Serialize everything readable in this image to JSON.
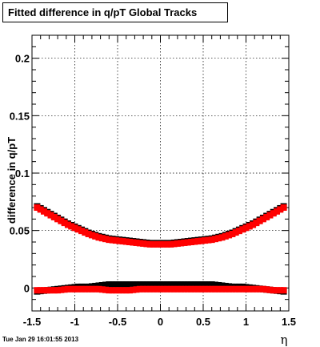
{
  "chart_data": {
    "type": "scatter",
    "title": "Fitted difference in q/pT  Global Tracks",
    "xlabel": "η",
    "ylabel": "difference in q/pT",
    "xlim": [
      -1.5,
      1.5
    ],
    "ylim": [
      -0.02,
      0.22
    ],
    "xticks": [
      -1.5,
      -1,
      -0.5,
      0,
      0.5,
      1,
      1.5
    ],
    "xtick_labels": [
      "-1.5",
      "-1",
      "-0.5",
      "0",
      "0.5",
      "1",
      "1.5"
    ],
    "yticks": [
      0,
      0.05,
      0.1,
      0.15,
      0.2
    ],
    "ytick_labels": [
      "0",
      "0.05",
      "0.1",
      "0.15",
      "0.2"
    ],
    "grid": true,
    "series": [
      {
        "color": "#000000",
        "marker": "square",
        "x": [
          -1.44,
          -1.32,
          -1.2,
          -1.08,
          -0.96,
          -0.84,
          -0.72,
          -0.6,
          -0.48,
          -0.36,
          -0.24,
          -0.12,
          0.0,
          0.12,
          0.24,
          0.36,
          0.48,
          0.6,
          0.72,
          0.84,
          0.96,
          1.08,
          1.2,
          1.32,
          1.44
        ],
        "y": [
          0.071,
          0.066,
          0.061,
          0.056,
          0.052,
          0.048,
          0.045,
          0.043,
          0.042,
          0.041,
          0.04,
          0.039,
          0.039,
          0.039,
          0.04,
          0.041,
          0.042,
          0.043,
          0.045,
          0.048,
          0.052,
          0.056,
          0.061,
          0.066,
          0.071
        ]
      },
      {
        "color": "#ff0000",
        "marker": "square",
        "x": [
          -1.44,
          -1.32,
          -1.2,
          -1.08,
          -0.96,
          -0.84,
          -0.72,
          -0.6,
          -0.48,
          -0.36,
          -0.24,
          -0.12,
          0.0,
          0.12,
          0.24,
          0.36,
          0.48,
          0.6,
          0.72,
          0.84,
          0.96,
          1.08,
          1.2,
          1.32,
          1.44
        ],
        "y": [
          0.07,
          0.065,
          0.06,
          0.055,
          0.051,
          0.047,
          0.044,
          0.042,
          0.041,
          0.04,
          0.039,
          0.038,
          0.038,
          0.038,
          0.039,
          0.04,
          0.041,
          0.042,
          0.044,
          0.047,
          0.051,
          0.055,
          0.06,
          0.065,
          0.07
        ]
      },
      {
        "color": "#000000",
        "marker": "square",
        "x": [
          -1.44,
          -1.32,
          -1.2,
          -1.08,
          -0.96,
          -0.84,
          -0.72,
          -0.6,
          -0.48,
          -0.36,
          -0.24,
          -0.12,
          0.0,
          0.12,
          0.24,
          0.36,
          0.48,
          0.6,
          0.72,
          0.84,
          0.96,
          1.08,
          1.2,
          1.32,
          1.44
        ],
        "y": [
          -0.003,
          -0.002,
          -0.001,
          0.0,
          0.001,
          0.001,
          0.002,
          0.003,
          0.003,
          0.003,
          0.003,
          0.003,
          0.003,
          0.003,
          0.003,
          0.003,
          0.003,
          0.003,
          0.002,
          0.001,
          0.001,
          0.0,
          -0.001,
          -0.002,
          -0.003
        ]
      },
      {
        "color": "#ff0000",
        "marker": "square",
        "x": [
          -1.44,
          -1.32,
          -1.2,
          -1.08,
          -0.96,
          -0.84,
          -0.72,
          -0.6,
          -0.48,
          -0.36,
          -0.24,
          -0.12,
          0.0,
          0.12,
          0.24,
          0.36,
          0.48,
          0.6,
          0.72,
          0.84,
          0.96,
          1.08,
          1.2,
          1.32,
          1.44
        ],
        "y": [
          -0.002,
          -0.002,
          -0.002,
          -0.001,
          -0.001,
          -0.001,
          -0.001,
          -0.002,
          -0.002,
          -0.002,
          -0.001,
          -0.001,
          -0.001,
          -0.001,
          -0.001,
          -0.001,
          -0.001,
          -0.001,
          -0.001,
          -0.001,
          -0.001,
          -0.001,
          -0.001,
          -0.002,
          -0.002
        ]
      }
    ]
  },
  "timestamp": "Tue Jan 29 16:01:55 2013"
}
